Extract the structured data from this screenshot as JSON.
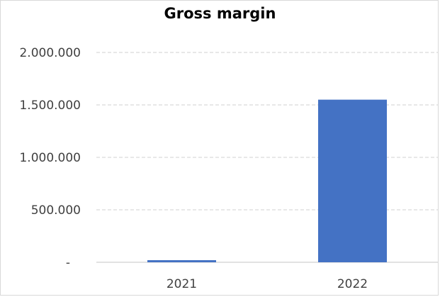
{
  "chart_data": {
    "type": "bar",
    "title": "Gross margin",
    "categories": [
      "2021",
      "2022"
    ],
    "values": [
      20000,
      1550000
    ],
    "ylim": [
      0,
      2000000
    ],
    "yticks": [
      {
        "value": 0,
        "label": "-"
      },
      {
        "value": 500000,
        "label": "500.000"
      },
      {
        "value": 1000000,
        "label": "1.000.000"
      },
      {
        "value": 1500000,
        "label": "1.500.000"
      },
      {
        "value": 2000000,
        "label": "2.000.000"
      }
    ],
    "grid": true,
    "bar_color": "#4472c4",
    "legend": "none"
  }
}
